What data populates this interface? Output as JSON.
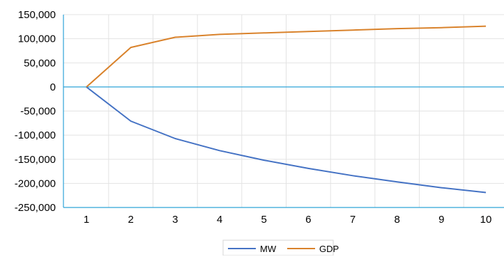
{
  "chart_data": {
    "type": "line",
    "x": [
      1,
      2,
      3,
      4,
      5,
      6,
      7,
      8,
      9,
      10
    ],
    "series": [
      {
        "name": "MW",
        "color": "#4472C4",
        "values": [
          0,
          -71000,
          -107000,
          -132000,
          -152000,
          -169000,
          -184000,
          -197000,
          -209000,
          -219000
        ]
      },
      {
        "name": "GDP",
        "color": "#D9822B",
        "values": [
          0,
          82000,
          103000,
          109000,
          112000,
          115000,
          118000,
          121000,
          123000,
          126000
        ]
      }
    ],
    "y_ticks": [
      "150,000",
      "100,000",
      "50,000",
      "0",
      "-50,000",
      "-100,000",
      "-150,000",
      "-200,000",
      "-250,000"
    ],
    "x_ticks": [
      "1",
      "2",
      "3",
      "4",
      "5",
      "6",
      "7",
      "8",
      "9",
      "10"
    ],
    "ylim": [
      -250000,
      150000
    ],
    "title": "",
    "xlabel": "",
    "ylabel": "",
    "grid": true,
    "legend": "bottom",
    "axis_color": "#2EA3D8",
    "grid_color": "#E3E3E3"
  }
}
